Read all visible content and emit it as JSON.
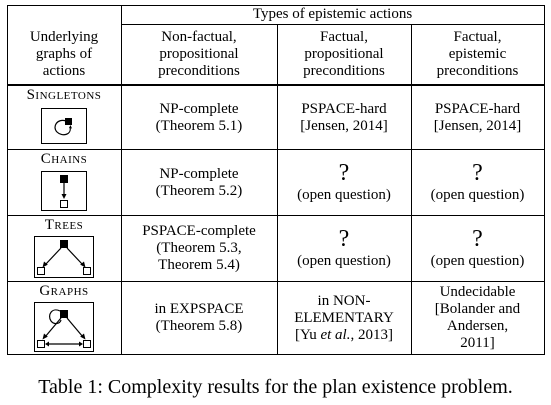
{
  "table": {
    "header": {
      "group_title": "Types of epistemic actions",
      "row_header": [
        "Underlying",
        "graphs of",
        "actions"
      ],
      "columns": [
        [
          "Non-factual,",
          "propositional",
          "preconditions"
        ],
        [
          "Factual,",
          "propositional",
          "preconditions"
        ],
        [
          "Factual,",
          "epistemic",
          "preconditions"
        ]
      ]
    },
    "rows": [
      {
        "label": "Singletons",
        "graph_icon": "singleton-graph-icon",
        "cells": [
          [
            "NP-complete",
            "(Theorem 5.1)"
          ],
          [
            "PSPACE-hard",
            "[Jensen, 2014]"
          ],
          [
            "PSPACE-hard",
            "[Jensen, 2014]"
          ]
        ]
      },
      {
        "label": "Chains",
        "graph_icon": "chain-graph-icon",
        "cells": [
          [
            "NP-complete",
            "(Theorem 5.2)"
          ],
          [
            "?",
            "(open question)"
          ],
          [
            "?",
            "(open question)"
          ]
        ]
      },
      {
        "label": "Trees",
        "graph_icon": "tree-graph-icon",
        "cells": [
          [
            "PSPACE-complete",
            "(Theorem 5.3,",
            "Theorem 5.4)"
          ],
          [
            "?",
            "(open question)"
          ],
          [
            "?",
            "(open question)"
          ]
        ]
      },
      {
        "label": "Graphs",
        "graph_icon": "general-graph-icon",
        "cells": [
          [
            "in EXPSPACE",
            "(Theorem 5.8)"
          ],
          [
            "in NON-",
            "ELEMENTARY",
            "[Yu ",
            "et al.",
            ", 2013]"
          ],
          [
            "Undecidable",
            "[Bolander and",
            "Andersen,",
            "2011]"
          ]
        ]
      }
    ]
  },
  "caption": "Table 1: Complexity results for the plan existence problem."
}
